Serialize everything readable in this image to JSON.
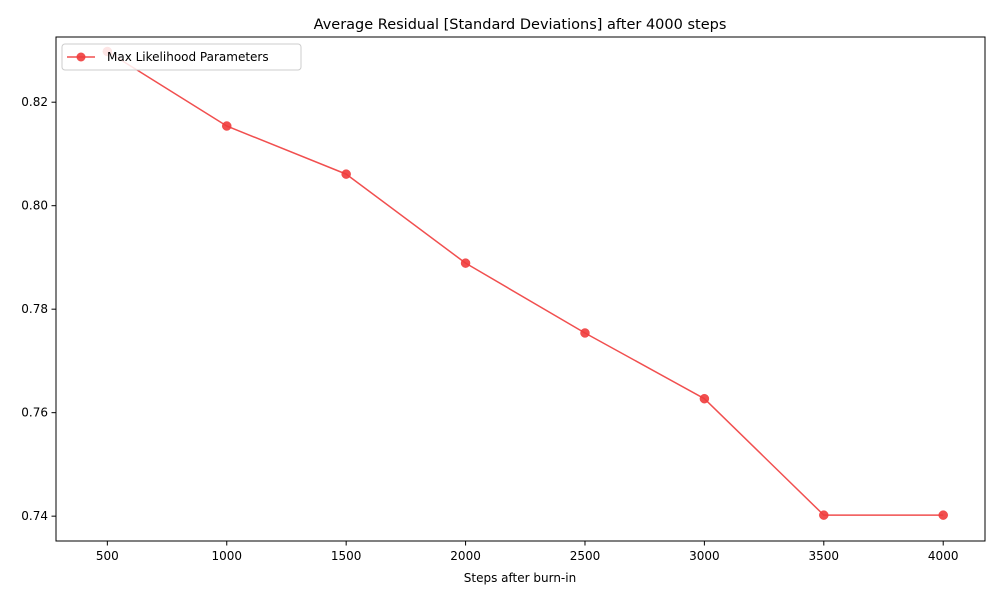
{
  "chart_data": {
    "type": "line",
    "title": "Average Residual [Standard Deviations] after 4000 steps",
    "xlabel": "Steps after burn-in",
    "ylabel": "",
    "xlim": [
      285,
      4175
    ],
    "ylim": [
      0.7352,
      0.8326
    ],
    "x_ticks": [
      500,
      1000,
      1500,
      2000,
      2500,
      3000,
      3500,
      4000
    ],
    "x_tick_labels": [
      "500",
      "1000",
      "1500",
      "2000",
      "2500",
      "3000",
      "3500",
      "4000"
    ],
    "y_ticks": [
      0.74,
      0.76,
      0.78,
      0.8,
      0.82
    ],
    "y_tick_labels": [
      "0.74",
      "0.76",
      "0.78",
      "0.80",
      "0.82"
    ],
    "grid": false,
    "legend_position": "upper-left",
    "series": [
      {
        "name": "Max Likelihood Parameters",
        "color": "#f03c3c",
        "marker": "circle",
        "x": [
          500,
          1000,
          1500,
          2000,
          2500,
          3000,
          3500,
          4000
        ],
        "y": [
          0.8298,
          0.8154,
          0.8061,
          0.7889,
          0.7754,
          0.7627,
          0.7402,
          0.7402
        ]
      }
    ]
  }
}
